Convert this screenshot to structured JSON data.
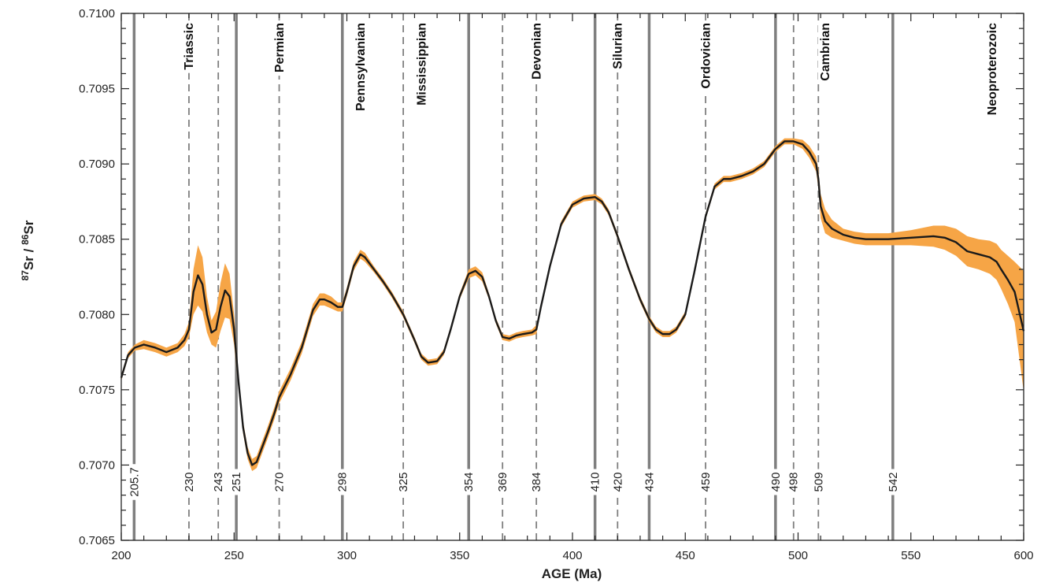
{
  "chart_data": {
    "type": "line",
    "xlabel": "AGE (Ma)",
    "ylabel": {
      "iso_a": "87",
      "el_a": "Sr",
      "sep": " / ",
      "iso_b": "86",
      "el_b": "Sr"
    },
    "xlim": [
      200,
      600
    ],
    "ylim": [
      0.7065,
      0.71
    ],
    "x_ticks": [
      200,
      250,
      300,
      350,
      400,
      450,
      500,
      550,
      600
    ],
    "x_tick_labels": [
      "200",
      "250",
      "300",
      "350",
      "400",
      "450",
      "500",
      "550",
      "600"
    ],
    "y_ticks": [
      0.7065,
      0.707,
      0.7075,
      0.708,
      0.7085,
      0.709,
      0.7095,
      0.71
    ],
    "y_tick_labels": [
      "0.7065",
      "0.7070",
      "0.7075",
      "0.7080",
      "0.7085",
      "0.7090",
      "0.7095",
      "0.7100"
    ],
    "grid": false,
    "colors": {
      "curve": "#1a1a1a",
      "band": "#f6a546",
      "boundary": "#7f7f7f"
    },
    "boundaries": [
      {
        "age": 205.7,
        "label": "205.7",
        "style": "solid"
      },
      {
        "age": 230,
        "label": "230",
        "style": "dashed"
      },
      {
        "age": 243,
        "label": "243",
        "style": "dashed"
      },
      {
        "age": 251,
        "label": "251",
        "style": "solid"
      },
      {
        "age": 270,
        "label": "270",
        "style": "dashed"
      },
      {
        "age": 298,
        "label": "298",
        "style": "solid"
      },
      {
        "age": 325,
        "label": "325",
        "style": "dashed"
      },
      {
        "age": 354,
        "label": "354",
        "style": "solid"
      },
      {
        "age": 369,
        "label": "369",
        "style": "dashed"
      },
      {
        "age": 384,
        "label": "384",
        "style": "dashed"
      },
      {
        "age": 410,
        "label": "410",
        "style": "solid"
      },
      {
        "age": 420,
        "label": "420",
        "style": "dashed"
      },
      {
        "age": 434,
        "label": "434",
        "style": "solid"
      },
      {
        "age": 459,
        "label": "459",
        "style": "dashed"
      },
      {
        "age": 490,
        "label": "490",
        "style": "solid"
      },
      {
        "age": 498,
        "label": "498",
        "style": "dashed"
      },
      {
        "age": 509,
        "label": "509",
        "style": "dashed"
      },
      {
        "age": 542,
        "label": "542",
        "style": "solid"
      }
    ],
    "periods": [
      {
        "name": "Triassic",
        "age": 230
      },
      {
        "name": "Permian",
        "age": 270
      },
      {
        "name": "Pennsylvanian",
        "age": 306
      },
      {
        "name": "Mississippian",
        "age": 333
      },
      {
        "name": "Devonian",
        "age": 384
      },
      {
        "name": "Silurian",
        "age": 420
      },
      {
        "name": "Ordovician",
        "age": 459
      },
      {
        "name": "Cambrian",
        "age": 512
      },
      {
        "name": "Neoproterozoic",
        "age": 586
      }
    ],
    "series": [
      {
        "x": [
          200,
          203,
          206,
          210,
          215,
          220,
          225,
          228,
          230,
          232,
          234,
          236,
          238,
          240,
          242,
          244,
          246,
          248,
          250,
          252,
          254,
          256,
          258,
          260,
          262,
          265,
          268,
          270,
          275,
          280,
          285,
          288,
          290,
          293,
          296,
          298,
          300,
          303,
          306,
          308,
          312,
          316,
          320,
          325,
          330,
          333,
          336,
          340,
          343,
          346,
          350,
          354,
          357,
          360,
          363,
          366,
          369,
          372,
          375,
          378,
          382,
          384,
          386,
          390,
          395,
          400,
          405,
          410,
          413,
          416,
          420,
          425,
          430,
          434,
          437,
          440,
          443,
          446,
          450,
          454,
          459,
          463,
          467,
          470,
          475,
          480,
          485,
          490,
          494,
          498,
          502,
          505,
          508,
          509,
          510,
          512,
          515,
          520,
          525,
          530,
          540,
          550,
          560,
          565,
          570,
          575,
          580,
          585,
          588,
          590,
          593,
          596,
          600
        ],
        "y": [
          0.70758,
          0.70773,
          0.70778,
          0.7078,
          0.70778,
          0.70775,
          0.70778,
          0.70783,
          0.7079,
          0.70815,
          0.70826,
          0.7082,
          0.708,
          0.70788,
          0.7079,
          0.70805,
          0.70816,
          0.70812,
          0.7079,
          0.70755,
          0.70725,
          0.70708,
          0.707,
          0.70702,
          0.7071,
          0.70722,
          0.70735,
          0.70745,
          0.7076,
          0.70778,
          0.70803,
          0.7081,
          0.7081,
          0.70808,
          0.70805,
          0.70805,
          0.70815,
          0.70832,
          0.7084,
          0.70838,
          0.7083,
          0.70822,
          0.70813,
          0.708,
          0.70783,
          0.70772,
          0.70768,
          0.70769,
          0.70775,
          0.7079,
          0.70812,
          0.70827,
          0.70829,
          0.70825,
          0.70812,
          0.70796,
          0.70785,
          0.70784,
          0.70786,
          0.70787,
          0.70788,
          0.7079,
          0.70805,
          0.70832,
          0.7086,
          0.70873,
          0.70877,
          0.70878,
          0.70875,
          0.70868,
          0.70852,
          0.7083,
          0.7081,
          0.70797,
          0.7079,
          0.70787,
          0.70787,
          0.7079,
          0.708,
          0.70828,
          0.70865,
          0.70885,
          0.7089,
          0.7089,
          0.70892,
          0.70895,
          0.709,
          0.7091,
          0.70915,
          0.70915,
          0.70913,
          0.70908,
          0.709,
          0.7089,
          0.70872,
          0.70862,
          0.70857,
          0.70853,
          0.70851,
          0.7085,
          0.7085,
          0.70851,
          0.70852,
          0.70851,
          0.70848,
          0.70842,
          0.7084,
          0.70838,
          0.70835,
          0.7083,
          0.70823,
          0.70815,
          0.70789
        ],
        "band": [
          2e-05,
          2e-05,
          2e-05,
          3e-05,
          3e-05,
          3e-05,
          3e-05,
          4e-05,
          5e-05,
          0.00015,
          0.0002,
          0.00018,
          0.00012,
          8e-05,
          0.00012,
          0.00016,
          0.00018,
          0.00015,
          0.0001,
          5e-05,
          4e-05,
          4e-05,
          4e-05,
          4e-05,
          4e-05,
          4e-05,
          4e-05,
          4e-05,
          4e-05,
          4e-05,
          4e-05,
          4e-05,
          4e-05,
          4e-05,
          3e-05,
          3e-05,
          3e-05,
          3e-05,
          3e-05,
          3e-05,
          2e-05,
          2e-05,
          2e-05,
          2e-05,
          2e-05,
          2e-05,
          2e-05,
          2e-05,
          2e-05,
          2e-05,
          2e-05,
          3e-05,
          3e-05,
          3e-05,
          2e-05,
          2e-05,
          2e-05,
          2e-05,
          2e-05,
          2e-05,
          2e-05,
          3e-05,
          2e-05,
          2e-05,
          2e-05,
          2e-05,
          2e-05,
          2e-05,
          2e-05,
          2e-05,
          2e-05,
          2e-05,
          2e-05,
          2e-05,
          2e-05,
          2e-05,
          2e-05,
          2e-05,
          2e-05,
          2e-05,
          2e-05,
          2e-05,
          2e-05,
          2e-05,
          2e-05,
          2e-05,
          2e-05,
          2e-05,
          2e-05,
          2e-05,
          3e-05,
          4e-05,
          5e-05,
          6e-05,
          8e-05,
          8e-05,
          6e-05,
          4e-05,
          4e-05,
          4e-05,
          4e-05,
          5e-05,
          7e-05,
          8e-05,
          9e-05,
          0.0001,
          0.0001,
          0.00011,
          0.00012,
          0.00013,
          0.00016,
          0.0002,
          0.0004
        ]
      }
    ]
  }
}
